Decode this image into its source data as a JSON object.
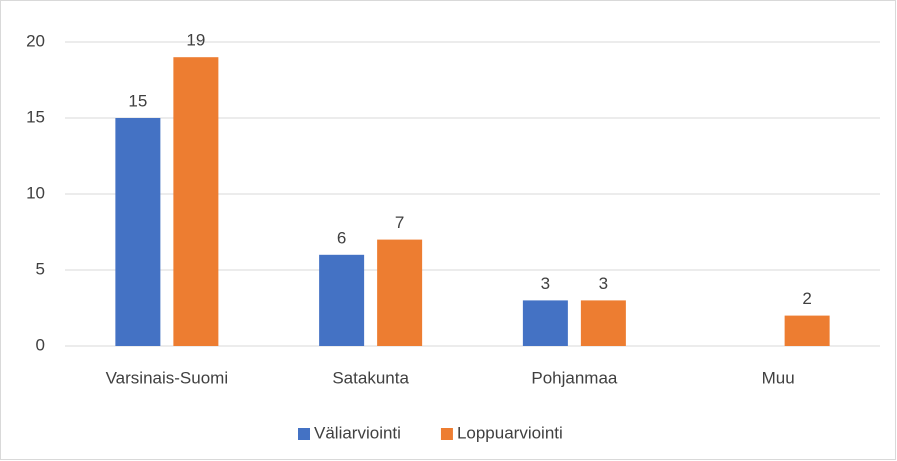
{
  "chart_data": {
    "type": "bar",
    "categories": [
      "Varsinais-Suomi",
      "Satakunta",
      "Pohjanmaa",
      "Muu"
    ],
    "series": [
      {
        "name": "Väliarviointi",
        "color": "#4472c4",
        "values": [
          15,
          6,
          3,
          null
        ]
      },
      {
        "name": "Loppuarviointi",
        "color": "#ed7d31",
        "values": [
          19,
          7,
          3,
          2
        ]
      }
    ],
    "ylim": [
      0,
      20
    ],
    "yticks": [
      0,
      5,
      10,
      15,
      20
    ],
    "grid": true,
    "legend": "bottom"
  }
}
